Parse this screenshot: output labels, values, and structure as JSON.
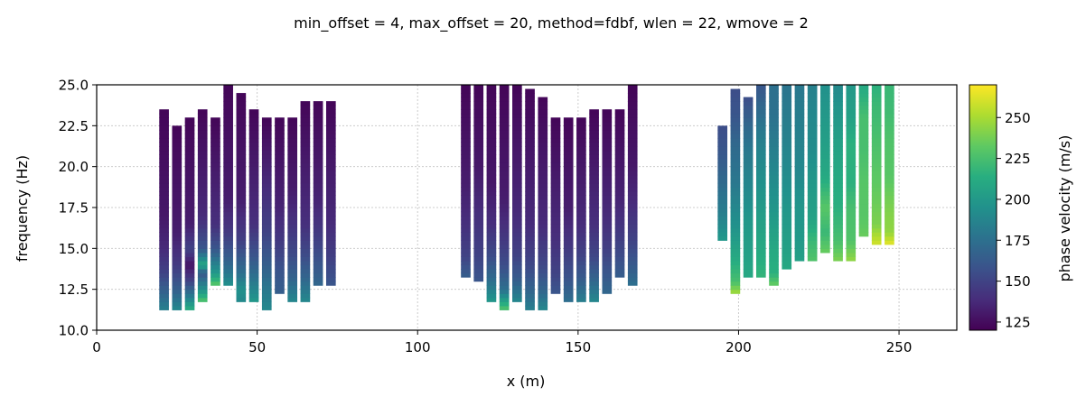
{
  "chart_data": {
    "type": "heatmap",
    "title": "min_offset = 4, max_offset = 20, method=fdbf, wlen = 22, wmove = 2",
    "xlabel": "x (m)",
    "ylabel": "frequency (Hz)",
    "xlim": [
      0,
      268
    ],
    "ylim": [
      10,
      25
    ],
    "xticks": [
      0,
      50,
      100,
      150,
      200,
      250
    ],
    "yticks": [
      10.0,
      12.5,
      15.0,
      17.5,
      20.0,
      22.5,
      25.0
    ],
    "grid": true,
    "colorbar": {
      "label": "phase velocity (m/s)",
      "range": [
        120,
        270
      ],
      "ticks": [
        125,
        150,
        175,
        200,
        225,
        250
      ],
      "colormap": "viridis"
    },
    "column_width_m": 3,
    "columns": [
      {
        "x": 21,
        "f": [
          11.25,
          23.5
        ],
        "v": [
          [
            11.25,
            185
          ],
          [
            12.5,
            165
          ],
          [
            13.5,
            150
          ],
          [
            15,
            138
          ],
          [
            17,
            130
          ],
          [
            23.5,
            122
          ]
        ]
      },
      {
        "x": 25,
        "f": [
          11.25,
          22.5
        ],
        "v": [
          [
            11.25,
            190
          ],
          [
            12.5,
            165
          ],
          [
            14,
            145
          ],
          [
            16,
            132
          ],
          [
            22.5,
            122
          ]
        ]
      },
      {
        "x": 29,
        "f": [
          11.25,
          23.0
        ],
        "v": [
          [
            11.25,
            215
          ],
          [
            12,
            185
          ],
          [
            13,
            150
          ],
          [
            14,
            128
          ],
          [
            15,
            150
          ],
          [
            16.5,
            132
          ],
          [
            23,
            122
          ]
        ]
      },
      {
        "x": 33,
        "f": [
          11.75,
          23.5
        ],
        "v": [
          [
            11.75,
            230
          ],
          [
            12.5,
            195
          ],
          [
            13.5,
            160
          ],
          [
            14,
            210
          ],
          [
            15,
            160
          ],
          [
            17,
            138
          ],
          [
            23.5,
            122
          ]
        ]
      },
      {
        "x": 37,
        "f": [
          12.75,
          23.0
        ],
        "v": [
          [
            12.75,
            232
          ],
          [
            13.5,
            200
          ],
          [
            15,
            160
          ],
          [
            16.5,
            140
          ],
          [
            23,
            122
          ]
        ]
      },
      {
        "x": 41,
        "f": [
          12.75,
          25.0
        ],
        "v": [
          [
            12.75,
            195
          ],
          [
            14,
            170
          ],
          [
            16,
            145
          ],
          [
            18,
            132
          ],
          [
            25,
            122
          ]
        ]
      },
      {
        "x": 45,
        "f": [
          11.75,
          24.5
        ],
        "v": [
          [
            11.75,
            190
          ],
          [
            12.5,
            195
          ],
          [
            13.5,
            175
          ],
          [
            15.5,
            148
          ],
          [
            18,
            132
          ],
          [
            24.5,
            122
          ]
        ]
      },
      {
        "x": 49,
        "f": [
          11.75,
          23.5
        ],
        "v": [
          [
            11.75,
            200
          ],
          [
            13,
            180
          ],
          [
            14.5,
            160
          ],
          [
            16.5,
            140
          ],
          [
            23.5,
            122
          ]
        ]
      },
      {
        "x": 53,
        "f": [
          11.25,
          23.0
        ],
        "v": [
          [
            11.25,
            190
          ],
          [
            12.5,
            180
          ],
          [
            14,
            165
          ],
          [
            16,
            150
          ],
          [
            18.5,
            140
          ],
          [
            23,
            122
          ]
        ]
      },
      {
        "x": 57,
        "f": [
          12.25,
          23.0
        ],
        "v": [
          [
            12.25,
            165
          ],
          [
            13.5,
            160
          ],
          [
            15.5,
            145
          ],
          [
            17.5,
            135
          ],
          [
            23,
            122
          ]
        ]
      },
      {
        "x": 61,
        "f": [
          11.75,
          23.0
        ],
        "v": [
          [
            11.75,
            190
          ],
          [
            13,
            170
          ],
          [
            14.5,
            155
          ],
          [
            16.5,
            142
          ],
          [
            18.5,
            132
          ],
          [
            23,
            122
          ]
        ]
      },
      {
        "x": 65,
        "f": [
          11.75,
          24.0
        ],
        "v": [
          [
            11.75,
            190
          ],
          [
            13,
            172
          ],
          [
            14.5,
            155
          ],
          [
            16.5,
            140
          ],
          [
            24,
            122
          ]
        ]
      },
      {
        "x": 69,
        "f": [
          12.75,
          24.0
        ],
        "v": [
          [
            12.75,
            170
          ],
          [
            14,
            160
          ],
          [
            16,
            145
          ],
          [
            18,
            135
          ],
          [
            24,
            122
          ]
        ]
      },
      {
        "x": 73,
        "f": [
          12.75,
          24.0
        ],
        "v": [
          [
            12.75,
            160
          ],
          [
            14.5,
            148
          ],
          [
            16.5,
            138
          ],
          [
            24,
            122
          ]
        ]
      },
      {
        "x": 115,
        "f": [
          13.25,
          25.0
        ],
        "v": [
          [
            13.25,
            165
          ],
          [
            14.5,
            150
          ],
          [
            16.5,
            140
          ],
          [
            19,
            132
          ],
          [
            25,
            122
          ]
        ]
      },
      {
        "x": 119,
        "f": [
          13.0,
          25.0
        ],
        "v": [
          [
            13,
            160
          ],
          [
            14.5,
            150
          ],
          [
            17,
            140
          ],
          [
            20,
            130
          ],
          [
            25,
            122
          ]
        ]
      },
      {
        "x": 123,
        "f": [
          11.75,
          25.0
        ],
        "v": [
          [
            11.75,
            200
          ],
          [
            13,
            175
          ],
          [
            14.5,
            155
          ],
          [
            16.5,
            140
          ],
          [
            19,
            130
          ],
          [
            25,
            122
          ]
        ]
      },
      {
        "x": 127,
        "f": [
          11.25,
          25.0
        ],
        "v": [
          [
            11.25,
            230
          ],
          [
            12.5,
            175
          ],
          [
            14,
            155
          ],
          [
            16,
            142
          ],
          [
            18,
            132
          ],
          [
            25,
            122
          ]
        ]
      },
      {
        "x": 131,
        "f": [
          11.75,
          25.0
        ],
        "v": [
          [
            11.75,
            190
          ],
          [
            13,
            165
          ],
          [
            14.5,
            150
          ],
          [
            17,
            138
          ],
          [
            25,
            122
          ]
        ]
      },
      {
        "x": 135,
        "f": [
          11.25,
          24.75
        ],
        "v": [
          [
            11.25,
            185
          ],
          [
            12.5,
            168
          ],
          [
            14,
            152
          ],
          [
            16.5,
            138
          ],
          [
            24.75,
            122
          ]
        ]
      },
      {
        "x": 139,
        "f": [
          11.25,
          24.25
        ],
        "v": [
          [
            11.25,
            190
          ],
          [
            12.5,
            168
          ],
          [
            14,
            152
          ],
          [
            16.5,
            138
          ],
          [
            24.25,
            122
          ]
        ]
      },
      {
        "x": 143,
        "f": [
          12.25,
          23.0
        ],
        "v": [
          [
            12.25,
            160
          ],
          [
            13.5,
            150
          ],
          [
            15.5,
            140
          ],
          [
            23,
            122
          ]
        ]
      },
      {
        "x": 147,
        "f": [
          11.75,
          23.0
        ],
        "v": [
          [
            11.75,
            175
          ],
          [
            13,
            160
          ],
          [
            15,
            145
          ],
          [
            17.5,
            132
          ],
          [
            23,
            122
          ]
        ]
      },
      {
        "x": 151,
        "f": [
          11.75,
          23.0
        ],
        "v": [
          [
            11.75,
            185
          ],
          [
            13,
            165
          ],
          [
            14.5,
            150
          ],
          [
            16.5,
            138
          ],
          [
            23,
            122
          ]
        ]
      },
      {
        "x": 155,
        "f": [
          11.75,
          23.5
        ],
        "v": [
          [
            11.75,
            190
          ],
          [
            13,
            170
          ],
          [
            14.5,
            152
          ],
          [
            16.5,
            140
          ],
          [
            23.5,
            122
          ]
        ]
      },
      {
        "x": 159,
        "f": [
          12.25,
          23.5
        ],
        "v": [
          [
            12.25,
            170
          ],
          [
            13.5,
            160
          ],
          [
            15,
            148
          ],
          [
            17,
            138
          ],
          [
            23.5,
            122
          ]
        ]
      },
      {
        "x": 163,
        "f": [
          13.25,
          23.5
        ],
        "v": [
          [
            13.25,
            165
          ],
          [
            14.5,
            155
          ],
          [
            16,
            145
          ],
          [
            18,
            135
          ],
          [
            23.5,
            122
          ]
        ]
      },
      {
        "x": 167,
        "f": [
          12.75,
          25.0
        ],
        "v": [
          [
            12.75,
            175
          ],
          [
            14,
            162
          ],
          [
            15.5,
            150
          ],
          [
            17.5,
            140
          ],
          [
            20,
            130
          ],
          [
            25,
            122
          ]
        ]
      },
      {
        "x": 195,
        "f": [
          15.5,
          22.5
        ],
        "v": [
          [
            15.5,
            200
          ],
          [
            17,
            185
          ],
          [
            19,
            172
          ],
          [
            21,
            160
          ],
          [
            22.5,
            155
          ]
        ]
      },
      {
        "x": 199,
        "f": [
          12.25,
          24.75
        ],
        "v": [
          [
            12.25,
            250
          ],
          [
            13,
            225
          ],
          [
            14.5,
            210
          ],
          [
            16.5,
            195
          ],
          [
            19,
            180
          ],
          [
            21.5,
            170
          ],
          [
            23,
            160
          ],
          [
            24.75,
            155
          ]
        ]
      },
      {
        "x": 203,
        "f": [
          13.25,
          24.25
        ],
        "v": [
          [
            13.25,
            210
          ],
          [
            14.5,
            205
          ],
          [
            16.5,
            200
          ],
          [
            18.5,
            190
          ],
          [
            21,
            180
          ],
          [
            22.5,
            170
          ],
          [
            24.25,
            155
          ]
        ]
      },
      {
        "x": 207,
        "f": [
          13.25,
          25.0
        ],
        "v": [
          [
            13.25,
            218
          ],
          [
            14.5,
            212
          ],
          [
            16.5,
            205
          ],
          [
            19,
            195
          ],
          [
            21.5,
            185
          ],
          [
            23,
            175
          ],
          [
            25,
            160
          ]
        ]
      },
      {
        "x": 211,
        "f": [
          12.75,
          25.0
        ],
        "v": [
          [
            12.75,
            235
          ],
          [
            13.5,
            215
          ],
          [
            15,
            210
          ],
          [
            17,
            200
          ],
          [
            19.5,
            190
          ],
          [
            22,
            180
          ],
          [
            23.5,
            175
          ],
          [
            25,
            175
          ]
        ]
      },
      {
        "x": 215,
        "f": [
          13.75,
          25.0
        ],
        "v": [
          [
            13.75,
            210
          ],
          [
            15,
            205
          ],
          [
            17,
            200
          ],
          [
            19.5,
            192
          ],
          [
            22,
            185
          ],
          [
            24,
            180
          ],
          [
            25,
            178
          ]
        ]
      },
      {
        "x": 219,
        "f": [
          14.25,
          25.0
        ],
        "v": [
          [
            14.25,
            205
          ],
          [
            15.5,
            200
          ],
          [
            17.5,
            198
          ],
          [
            19.5,
            190
          ],
          [
            22,
            185
          ],
          [
            25,
            180
          ]
        ]
      },
      {
        "x": 223,
        "f": [
          14.25,
          25.0
        ],
        "v": [
          [
            14.25,
            228
          ],
          [
            15.5,
            220
          ],
          [
            17,
            205
          ],
          [
            19,
            200
          ],
          [
            21,
            192
          ],
          [
            23,
            190
          ],
          [
            25,
            185
          ]
        ]
      },
      {
        "x": 227,
        "f": [
          14.75,
          25.0
        ],
        "v": [
          [
            14.75,
            235
          ],
          [
            16,
            220
          ],
          [
            17.5,
            230
          ],
          [
            19.5,
            210
          ],
          [
            21,
            205
          ],
          [
            23,
            200
          ],
          [
            25,
            195
          ]
        ]
      },
      {
        "x": 231,
        "f": [
          14.25,
          25.0
        ],
        "v": [
          [
            14.25,
            240
          ],
          [
            15.5,
            225
          ],
          [
            17.5,
            215
          ],
          [
            19.5,
            210
          ],
          [
            21.5,
            205
          ],
          [
            23.5,
            198
          ],
          [
            25,
            190
          ]
        ]
      },
      {
        "x": 235,
        "f": [
          14.25,
          25.0
        ],
        "v": [
          [
            14.25,
            245
          ],
          [
            15.5,
            228
          ],
          [
            17.5,
            225
          ],
          [
            19,
            215
          ],
          [
            21.5,
            215
          ],
          [
            23,
            205
          ],
          [
            25,
            200
          ]
        ]
      },
      {
        "x": 239,
        "f": [
          15.75,
          25.0
        ],
        "v": [
          [
            15.75,
            235
          ],
          [
            17,
            230
          ],
          [
            19,
            230
          ],
          [
            21,
            225
          ],
          [
            23,
            225
          ],
          [
            25,
            210
          ]
        ]
      },
      {
        "x": 243,
        "f": [
          15.25,
          25.0
        ],
        "v": [
          [
            15.25,
            260
          ],
          [
            16.5,
            240
          ],
          [
            18,
            235
          ],
          [
            20,
            230
          ],
          [
            22,
            225
          ],
          [
            24,
            220
          ],
          [
            25,
            215
          ]
        ]
      },
      {
        "x": 247,
        "f": [
          15.25,
          25.0
        ],
        "v": [
          [
            15.25,
            265
          ],
          [
            16,
            245
          ],
          [
            17.5,
            240
          ],
          [
            19.5,
            230
          ],
          [
            21.5,
            228
          ],
          [
            23.5,
            222
          ],
          [
            25,
            220
          ]
        ]
      }
    ]
  }
}
